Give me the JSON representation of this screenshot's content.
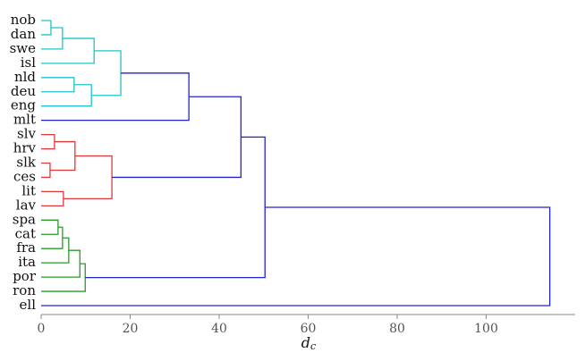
{
  "chart_data": {
    "type": "dendrogram",
    "xlabel": "d",
    "xlabel_sub": "c",
    "xlim": [
      0,
      120
    ],
    "xticks": [
      0,
      20,
      40,
      60,
      80,
      100
    ],
    "leaves": [
      "nob",
      "dan",
      "swe",
      "isl",
      "nld",
      "deu",
      "eng",
      "mlt",
      "slv",
      "hrv",
      "slk",
      "ces",
      "lit",
      "lav",
      "spa",
      "cat",
      "fra",
      "ita",
      "por",
      "ron",
      "ell"
    ],
    "merges": [
      {
        "left": 0,
        "right": 1,
        "height": 2.2,
        "color": "#22c3c8"
      },
      {
        "left": 21,
        "right": 2,
        "height": 4.8,
        "color": "#22c3c8"
      },
      {
        "left": 22,
        "right": 3,
        "height": 11.9,
        "color": "#22c3c8"
      },
      {
        "left": 4,
        "right": 5,
        "height": 7.4,
        "color": "#22c3c8"
      },
      {
        "left": 24,
        "right": 6,
        "height": 11.3,
        "color": "#22c3c8"
      },
      {
        "left": 23,
        "right": 25,
        "height": 17.9,
        "color": "#22c3c8"
      },
      {
        "left": 26,
        "right": 7,
        "height": 33.2,
        "color": "#2323d8"
      },
      {
        "left": 8,
        "right": 9,
        "height": 3.0,
        "color": "#e0393c"
      },
      {
        "left": 10,
        "right": 11,
        "height": 2.0,
        "color": "#e0393c"
      },
      {
        "left": 28,
        "right": 29,
        "height": 7.6,
        "color": "#e0393c"
      },
      {
        "left": 12,
        "right": 13,
        "height": 5.0,
        "color": "#e0393c"
      },
      {
        "left": 30,
        "right": 31,
        "height": 15.9,
        "color": "#e0393c"
      },
      {
        "left": 27,
        "right": 32,
        "height": 44.9,
        "color": "#2323d8"
      },
      {
        "left": 14,
        "right": 15,
        "height": 3.8,
        "color": "#2b9a2b"
      },
      {
        "left": 34,
        "right": 16,
        "height": 4.8,
        "color": "#2b9a2b"
      },
      {
        "left": 35,
        "right": 17,
        "height": 6.2,
        "color": "#2b9a2b"
      },
      {
        "left": 36,
        "right": 18,
        "height": 8.7,
        "color": "#2b9a2b"
      },
      {
        "left": 37,
        "right": 19,
        "height": 9.9,
        "color": "#2b9a2b"
      },
      {
        "left": 33,
        "right": 38,
        "height": 50.3,
        "color": "#2323d8"
      },
      {
        "left": 39,
        "right": 20,
        "height": 114.3,
        "color": "#2323d8"
      }
    ]
  }
}
